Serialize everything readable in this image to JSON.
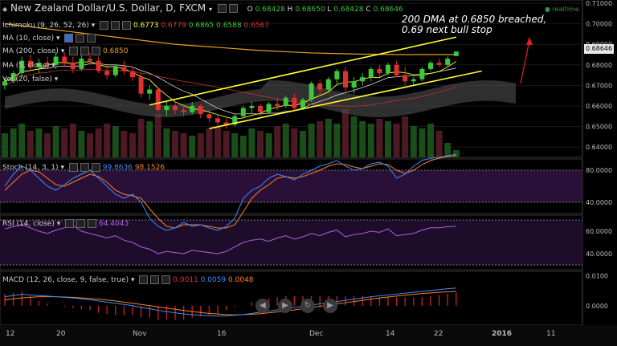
{
  "header": {
    "title": "New Zealand Dollar/U.S. Dollar, D, FXCM",
    "ohlc": {
      "o_label": "O",
      "o": "0.68428",
      "h_label": "H",
      "h": "0.68650",
      "l_label": "L",
      "l": "0.68428",
      "c_label": "C",
      "c": "0.68646"
    },
    "realtime": "realtime"
  },
  "indicators": {
    "ichimoku": {
      "label": "Ichimoku (9, 26, 52, 26)",
      "v1": "0.6773",
      "v2": "0.6779",
      "v3": "0.6865",
      "v4": "0.6588",
      "v5": "0.6567"
    },
    "ma10": {
      "label": "MA (10, close)"
    },
    "ma200": {
      "label": "MA (200, close)",
      "value": "0.6850"
    },
    "ma5": {
      "label": "MA (5, close)"
    },
    "vol": {
      "label": "Vol (20, false)"
    },
    "stoch": {
      "label": "Stoch (14, 3, 1)",
      "k": "99.8636",
      "d": "98.1526"
    },
    "rsi": {
      "label": "RSI (14, close)",
      "value": "64.4043"
    },
    "macd": {
      "label": "MACD (12, 26, close, 9, false, true)",
      "hist": "0.0011",
      "macd": "0.0059",
      "signal": "0.0048"
    }
  },
  "annotation": {
    "line1": "200 DMA at 0.6850 breached,",
    "line2": "0.69 next bull stop"
  },
  "last_price": "0.68646",
  "colors": {
    "bull": "#3cc83c",
    "bear": "#e03030",
    "channel": "#ffff33",
    "ma200": "#e8a020",
    "ma10": "#ffffff",
    "cloud": "#555555",
    "stoch_k": "#3a8eff",
    "stoch_d": "#ff7f1e",
    "rsi": "#b060e0",
    "macd": "#3a8eff",
    "signal": "#ff7f1e",
    "arrow": "#e02020"
  },
  "nav_buttons": [
    "◀",
    "▶",
    "↻",
    "▶"
  ],
  "chart_data": {
    "type": "candlestick",
    "price_axis": [
      "0.71000",
      "0.70000",
      "0.69000",
      "0.68000",
      "0.67000",
      "0.66000",
      "0.65000",
      "0.64000"
    ],
    "price_range": [
      0.635,
      0.71
    ],
    "x_labels": [
      "12",
      "20",
      "Nov",
      "16",
      "Dec",
      "14",
      "22",
      "2016",
      "11"
    ],
    "candles": [
      [
        0.67,
        0.674,
        0.668,
        0.672
      ],
      [
        0.672,
        0.677,
        0.671,
        0.676
      ],
      [
        0.676,
        0.684,
        0.674,
        0.682
      ],
      [
        0.682,
        0.685,
        0.677,
        0.679
      ],
      [
        0.679,
        0.683,
        0.676,
        0.681
      ],
      [
        0.681,
        0.684,
        0.679,
        0.68
      ],
      [
        0.68,
        0.686,
        0.678,
        0.684
      ],
      [
        0.684,
        0.686,
        0.679,
        0.681
      ],
      [
        0.681,
        0.684,
        0.676,
        0.678
      ],
      [
        0.678,
        0.685,
        0.677,
        0.683
      ],
      [
        0.683,
        0.686,
        0.681,
        0.682
      ],
      [
        0.682,
        0.684,
        0.676,
        0.677
      ],
      [
        0.677,
        0.68,
        0.673,
        0.675
      ],
      [
        0.675,
        0.68,
        0.674,
        0.679
      ],
      [
        0.679,
        0.682,
        0.675,
        0.677
      ],
      [
        0.677,
        0.679,
        0.672,
        0.674
      ],
      [
        0.674,
        0.676,
        0.664,
        0.666
      ],
      [
        0.666,
        0.67,
        0.663,
        0.668
      ],
      [
        0.668,
        0.669,
        0.657,
        0.658
      ],
      [
        0.658,
        0.662,
        0.655,
        0.66
      ],
      [
        0.66,
        0.662,
        0.656,
        0.658
      ],
      [
        0.658,
        0.661,
        0.655,
        0.657
      ],
      [
        0.657,
        0.662,
        0.656,
        0.66
      ],
      [
        0.66,
        0.661,
        0.654,
        0.656
      ],
      [
        0.656,
        0.658,
        0.652,
        0.654
      ],
      [
        0.654,
        0.656,
        0.65,
        0.652
      ],
      [
        0.652,
        0.654,
        0.649,
        0.651
      ],
      [
        0.651,
        0.656,
        0.65,
        0.655
      ],
      [
        0.655,
        0.66,
        0.654,
        0.659
      ],
      [
        0.659,
        0.662,
        0.656,
        0.66
      ],
      [
        0.66,
        0.661,
        0.655,
        0.657
      ],
      [
        0.657,
        0.662,
        0.656,
        0.661
      ],
      [
        0.661,
        0.664,
        0.658,
        0.66
      ],
      [
        0.66,
        0.665,
        0.659,
        0.664
      ],
      [
        0.664,
        0.666,
        0.658,
        0.659
      ],
      [
        0.659,
        0.664,
        0.658,
        0.663
      ],
      [
        0.663,
        0.672,
        0.662,
        0.671
      ],
      [
        0.671,
        0.673,
        0.665,
        0.668
      ],
      [
        0.668,
        0.674,
        0.667,
        0.673
      ],
      [
        0.673,
        0.678,
        0.67,
        0.677
      ],
      [
        0.677,
        0.679,
        0.667,
        0.669
      ],
      [
        0.669,
        0.674,
        0.666,
        0.672
      ],
      [
        0.672,
        0.676,
        0.67,
        0.674
      ],
      [
        0.674,
        0.679,
        0.672,
        0.678
      ],
      [
        0.678,
        0.68,
        0.674,
        0.676
      ],
      [
        0.676,
        0.681,
        0.675,
        0.68
      ],
      [
        0.68,
        0.682,
        0.674,
        0.675
      ],
      [
        0.675,
        0.679,
        0.67,
        0.672
      ],
      [
        0.672,
        0.674,
        0.67,
        0.673
      ],
      [
        0.673,
        0.679,
        0.672,
        0.678
      ],
      [
        0.678,
        0.682,
        0.677,
        0.681
      ],
      [
        0.681,
        0.683,
        0.679,
        0.68
      ],
      [
        0.68,
        0.684,
        0.679,
        0.683
      ],
      [
        0.6843,
        0.6865,
        0.6843,
        0.6865
      ]
    ],
    "ma200": [
      0.7,
      0.6995,
      0.699,
      0.6985,
      0.698,
      0.6975,
      0.697,
      0.6965,
      0.696,
      0.6955,
      0.695,
      0.6945,
      0.694,
      0.6935,
      0.693,
      0.6925,
      0.692,
      0.6915,
      0.691,
      0.6905,
      0.69,
      0.6897,
      0.6894,
      0.6891,
      0.6888,
      0.6885,
      0.6882,
      0.6879,
      0.6876,
      0.6873,
      0.687,
      0.6868,
      0.6866,
      0.6864,
      0.6862,
      0.686,
      0.6858,
      0.6857,
      0.6856,
      0.6855,
      0.6854,
      0.6853,
      0.6852,
      0.6852,
      0.6851,
      0.6851,
      0.685,
      0.685,
      0.685,
      0.685,
      0.685,
      0.685,
      0.685,
      0.685
    ],
    "channel_upper": {
      "from": [
        17,
        0.6605
      ],
      "to": [
        53,
        0.6935
      ]
    },
    "channel_lower": {
      "from": [
        24,
        0.649
      ],
      "to": [
        56,
        0.677
      ]
    },
    "volume": [
      0.5,
      0.6,
      0.7,
      0.55,
      0.6,
      0.5,
      0.65,
      0.6,
      0.7,
      0.55,
      0.5,
      0.6,
      0.7,
      0.65,
      0.55,
      0.5,
      0.8,
      0.75,
      0.9,
      0.6,
      0.55,
      0.5,
      0.45,
      0.5,
      0.6,
      0.65,
      0.55,
      0.5,
      0.45,
      0.6,
      0.55,
      0.5,
      0.65,
      0.7,
      0.6,
      0.55,
      0.7,
      0.75,
      0.8,
      0.7,
      1.0,
      0.85,
      0.75,
      0.7,
      0.8,
      0.75,
      0.7,
      0.85,
      0.65,
      0.6,
      0.7,
      0.55,
      0.3,
      0.15
    ],
    "stoch": {
      "axis": [
        "80.0000",
        "40.0000"
      ],
      "k": [
        60,
        75,
        85,
        80,
        70,
        60,
        55,
        62,
        70,
        75,
        80,
        70,
        60,
        50,
        45,
        50,
        40,
        20,
        10,
        5,
        8,
        15,
        10,
        12,
        8,
        5,
        10,
        20,
        45,
        55,
        60,
        70,
        75,
        72,
        68,
        75,
        80,
        85,
        88,
        92,
        85,
        80,
        82,
        88,
        90,
        85,
        70,
        75,
        85,
        92,
        95,
        96,
        98,
        99.8636
      ],
      "d": [
        55,
        65,
        75,
        80,
        78,
        70,
        62,
        60,
        65,
        70,
        75,
        72,
        65,
        55,
        50,
        48,
        45,
        32,
        20,
        10,
        8,
        12,
        12,
        12,
        10,
        8,
        8,
        12,
        28,
        45,
        55,
        62,
        70,
        72,
        70,
        72,
        76,
        80,
        85,
        88,
        87,
        84,
        82,
        85,
        88,
        87,
        80,
        76,
        80,
        87,
        92,
        95,
        97,
        98.1526
      ]
    },
    "rsi": {
      "axis": [
        "60.0000",
        "40.0000"
      ],
      "values": [
        62,
        64,
        66,
        63,
        60,
        58,
        61,
        63,
        65,
        60,
        58,
        56,
        54,
        56,
        52,
        50,
        46,
        44,
        40,
        42,
        41,
        40,
        43,
        42,
        41,
        40,
        42,
        46,
        50,
        52,
        53,
        51,
        54,
        56,
        53,
        55,
        58,
        56,
        59,
        61,
        55,
        57,
        58,
        60,
        59,
        62,
        56,
        57,
        58,
        61,
        63,
        63,
        64,
        64.4043
      ]
    },
    "macd": {
      "axis": [
        "0.0100",
        "0.0000"
      ],
      "range": [
        -0.006,
        0.011
      ],
      "macd": [
        0.003,
        0.0034,
        0.0038,
        0.0036,
        0.0034,
        0.0032,
        0.003,
        0.0028,
        0.0026,
        0.0023,
        0.002,
        0.0016,
        0.0012,
        0.0008,
        0.0004,
        0,
        -0.0006,
        -0.001,
        -0.0016,
        -0.002,
        -0.0024,
        -0.0028,
        -0.003,
        -0.0032,
        -0.0034,
        -0.0035,
        -0.0034,
        -0.0032,
        -0.003,
        -0.0026,
        -0.0022,
        -0.0018,
        -0.0014,
        -0.001,
        -0.0006,
        -0.0002,
        0.0002,
        0.0006,
        0.001,
        0.0014,
        0.0018,
        0.0022,
        0.0026,
        0.003,
        0.0033,
        0.0036,
        0.0039,
        0.0042,
        0.0045,
        0.0048,
        0.0051,
        0.0054,
        0.0057,
        0.0059
      ],
      "signal": [
        0.002,
        0.0023,
        0.0026,
        0.0028,
        0.003,
        0.003,
        0.003,
        0.0029,
        0.0028,
        0.0026,
        0.0024,
        0.0022,
        0.0019,
        0.0016,
        0.0012,
        0.0008,
        0.0004,
        0,
        -0.0004,
        -0.0008,
        -0.0012,
        -0.0016,
        -0.002,
        -0.0023,
        -0.0026,
        -0.0028,
        -0.003,
        -0.0031,
        -0.003,
        -0.0029,
        -0.0027,
        -0.0024,
        -0.0021,
        -0.0018,
        -0.0014,
        -0.001,
        -0.0006,
        -0.0002,
        0.0002,
        0.0006,
        0.001,
        0.0014,
        0.0018,
        0.0022,
        0.0026,
        0.0029,
        0.0032,
        0.0035,
        0.0038,
        0.0041,
        0.0043,
        0.0045,
        0.0047,
        0.0048
      ]
    }
  }
}
